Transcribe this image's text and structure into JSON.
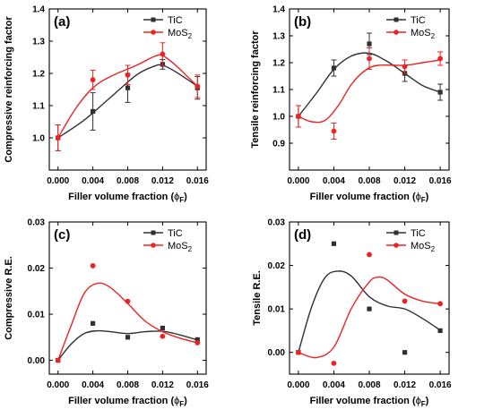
{
  "colors": {
    "TiC": "#303030",
    "MoS2": "#ee2222"
  },
  "legend": {
    "TiC": "TiC",
    "MoS2_base": "MoS",
    "MoS2_sub": "2"
  },
  "xlabel": {
    "main": "Filler volume fraction (",
    "phi": "ϕ",
    "sub": "F",
    "close": ")"
  },
  "chart_data": [
    {
      "type": "line",
      "panel_label": "(a)",
      "ylabel": "Compressive reinforcing factor",
      "x": [
        0.0,
        0.004,
        0.008,
        0.012,
        0.016
      ],
      "x_ticks": [
        "0.000",
        "0.004",
        "0.008",
        "0.012",
        "0.016"
      ],
      "xlim": [
        -0.001,
        0.017
      ],
      "ylim": [
        0.9,
        1.4
      ],
      "y_ticks": [
        0.9,
        1.0,
        1.1,
        1.2,
        1.3,
        1.4
      ],
      "y_tick_labels": [
        "",
        "1.0",
        "1.1",
        "1.2",
        "1.3",
        "1.4"
      ],
      "legend_position": "top-right",
      "series": [
        {
          "name": "TiC",
          "values": [
            1.0,
            1.082,
            1.155,
            1.228,
            1.155
          ],
          "errors": [
            0.04,
            0.058,
            0.045,
            0.015,
            0.035
          ],
          "marker": "square",
          "fit": "smooth"
        },
        {
          "name": "MoS2",
          "values": [
            1.0,
            1.18,
            1.195,
            1.26,
            1.16
          ],
          "errors": [
            0.04,
            0.03,
            0.03,
            0.035,
            0.035
          ],
          "marker": "circle",
          "fit": "smooth"
        }
      ]
    },
    {
      "type": "line",
      "panel_label": "(b)",
      "ylabel": "Tensile reinforcing factor",
      "x": [
        0.0,
        0.004,
        0.008,
        0.012,
        0.016
      ],
      "x_ticks": [
        "0.000",
        "0.004",
        "0.008",
        "0.012",
        "0.016"
      ],
      "xlim": [
        -0.001,
        0.017
      ],
      "ylim": [
        0.8,
        1.4
      ],
      "y_ticks": [
        0.8,
        0.9,
        1.0,
        1.1,
        1.2,
        1.3,
        1.4
      ],
      "y_tick_labels": [
        "",
        "0.9",
        "1.0",
        "1.1",
        "1.2",
        "1.3",
        "1.4"
      ],
      "legend_position": "top-right",
      "series": [
        {
          "name": "TiC",
          "values": [
            1.0,
            1.18,
            1.27,
            1.16,
            1.09
          ],
          "errors": [
            0.04,
            0.03,
            0.04,
            0.03,
            0.03
          ],
          "marker": "square",
          "fit": "smooth"
        },
        {
          "name": "MoS2",
          "values": [
            1.0,
            0.945,
            1.215,
            1.185,
            1.215
          ],
          "errors": [
            0.04,
            0.03,
            0.04,
            0.025,
            0.025
          ],
          "marker": "circle",
          "fit": "smooth"
        }
      ]
    },
    {
      "type": "scatter",
      "panel_label": "(c)",
      "ylabel": "Compressive R.E.",
      "x": [
        0.0,
        0.004,
        0.008,
        0.012,
        0.016
      ],
      "x_ticks": [
        "0.000",
        "0.004",
        "0.008",
        "0.012",
        "0.016"
      ],
      "xlim": [
        -0.001,
        0.017
      ],
      "ylim": [
        -0.003,
        0.03
      ],
      "y_ticks": [
        0.0,
        0.01,
        0.02,
        0.03
      ],
      "y_tick_labels": [
        "0.00",
        "0.01",
        "0.02",
        "0.03"
      ],
      "legend_position": "top-right",
      "series": [
        {
          "name": "TiC",
          "values": [
            0.0,
            0.008,
            0.005,
            0.007,
            0.0045
          ],
          "marker": "square",
          "fit": "smooth"
        },
        {
          "name": "MoS2",
          "values": [
            0.0,
            0.0205,
            0.0128,
            0.0052,
            0.0038
          ],
          "marker": "circle",
          "fit": "smooth"
        }
      ]
    },
    {
      "type": "scatter",
      "panel_label": "(d)",
      "ylabel": "Tensile R.E.",
      "x": [
        0.0,
        0.004,
        0.008,
        0.012,
        0.016
      ],
      "x_ticks": [
        "0.000",
        "0.004",
        "0.008",
        "0.012",
        "0.016"
      ],
      "xlim": [
        -0.001,
        0.017
      ],
      "ylim": [
        -0.005,
        0.03
      ],
      "y_ticks": [
        0.0,
        0.01,
        0.02,
        0.03
      ],
      "y_tick_labels": [
        "0.00",
        "0.01",
        "0.02",
        "0.03"
      ],
      "legend_position": "top-right",
      "series": [
        {
          "name": "TiC",
          "values": [
            0.0,
            0.025,
            0.01,
            0.0,
            0.005
          ],
          "marker": "square",
          "fit": "smooth"
        },
        {
          "name": "MoS2",
          "values": [
            0.0,
            -0.0025,
            0.0225,
            0.0118,
            0.0112
          ],
          "marker": "circle",
          "fit": "smooth"
        }
      ]
    }
  ]
}
